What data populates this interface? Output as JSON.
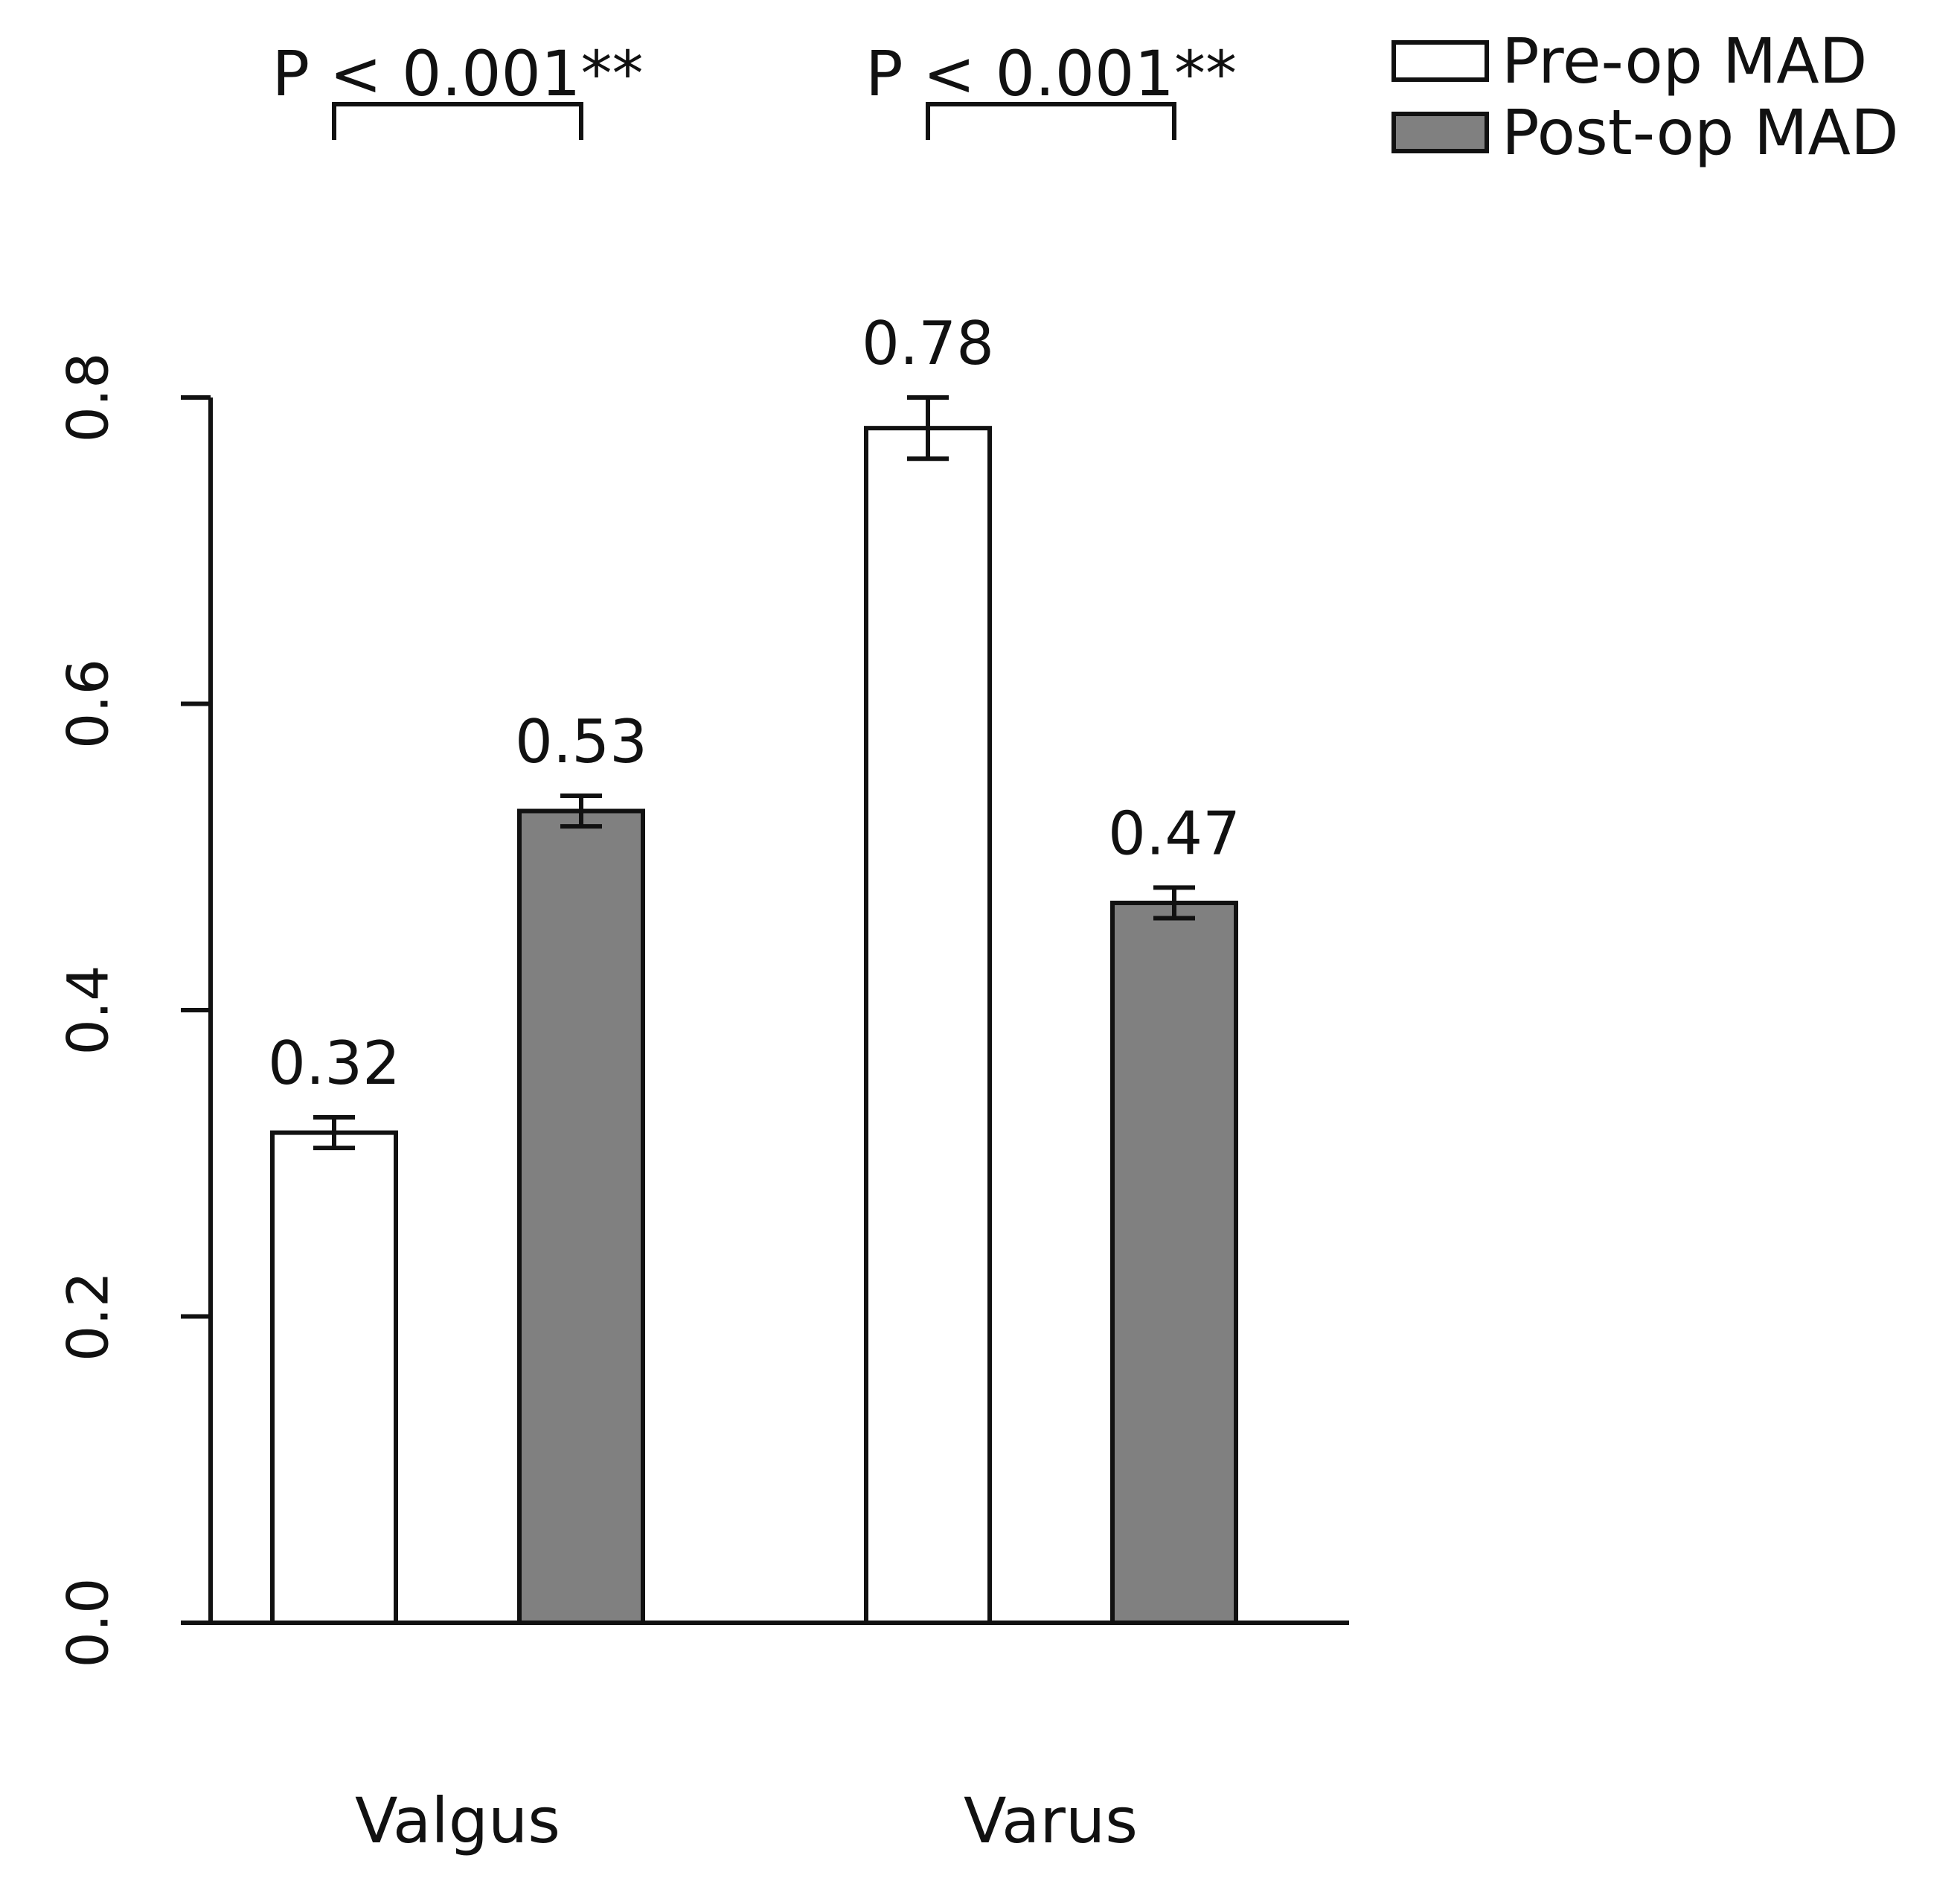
{
  "chart_data": {
    "type": "bar",
    "title": "",
    "xlabel": "",
    "ylabel": "",
    "ylim": [
      0,
      0.8
    ],
    "yticks": [
      "0.0",
      "0.2",
      "0.4",
      "0.6",
      "0.8"
    ],
    "ytick_values": [
      0,
      0.2,
      0.4,
      0.6,
      0.8
    ],
    "categories": [
      "Valgus",
      "Varus"
    ],
    "series": [
      {
        "name": "Pre-op MAD",
        "color": "#ffffff",
        "values": [
          0.32,
          0.78
        ],
        "value_labels": [
          "0.32",
          "0.78"
        ],
        "error": [
          0.01,
          0.02
        ]
      },
      {
        "name": "Post-op MAD",
        "color": "#808080",
        "values": [
          0.53,
          0.47
        ],
        "value_labels": [
          "0.53",
          "0.47"
        ],
        "error": [
          0.01,
          0.01
        ]
      }
    ],
    "legend": {
      "position": "top-right",
      "entries": [
        "Pre-op MAD",
        "Post-op MAD"
      ]
    },
    "annotations": [
      {
        "category": "Valgus",
        "text": "P < 0.001**"
      },
      {
        "category": "Varus",
        "text": "P < 0.001**"
      }
    ]
  }
}
